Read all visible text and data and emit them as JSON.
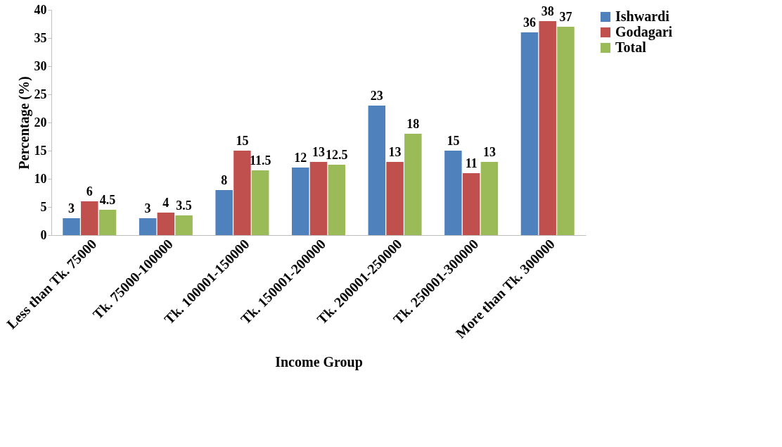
{
  "chart_data": {
    "type": "bar",
    "xlabel": "Income Group",
    "ylabel": "Percentage (%)",
    "categories": [
      "Less than Tk. 75000",
      "Tk. 75000-100000",
      "Tk. 100001-150000",
      "Tk. 150001-200000",
      "Tk. 200001-250000",
      "Tk. 250001-300000",
      "More than Tk. 300000"
    ],
    "series": [
      {
        "name": "Ishwardi",
        "color": "#4f81bd",
        "values": [
          3,
          3,
          8,
          12,
          23,
          15,
          36
        ]
      },
      {
        "name": "Godagari",
        "color": "#c0504d",
        "values": [
          6,
          4,
          15,
          13,
          13,
          11,
          38
        ]
      },
      {
        "name": "Total",
        "color": "#9bbb59",
        "values": [
          4.5,
          3.5,
          11.5,
          12.5,
          18,
          13,
          37
        ]
      }
    ],
    "ylim": [
      0,
      40
    ],
    "yticks": [
      0,
      5,
      10,
      15,
      20,
      25,
      30,
      35,
      40
    ],
    "grid": false,
    "legend": "right",
    "data_labels": true
  }
}
